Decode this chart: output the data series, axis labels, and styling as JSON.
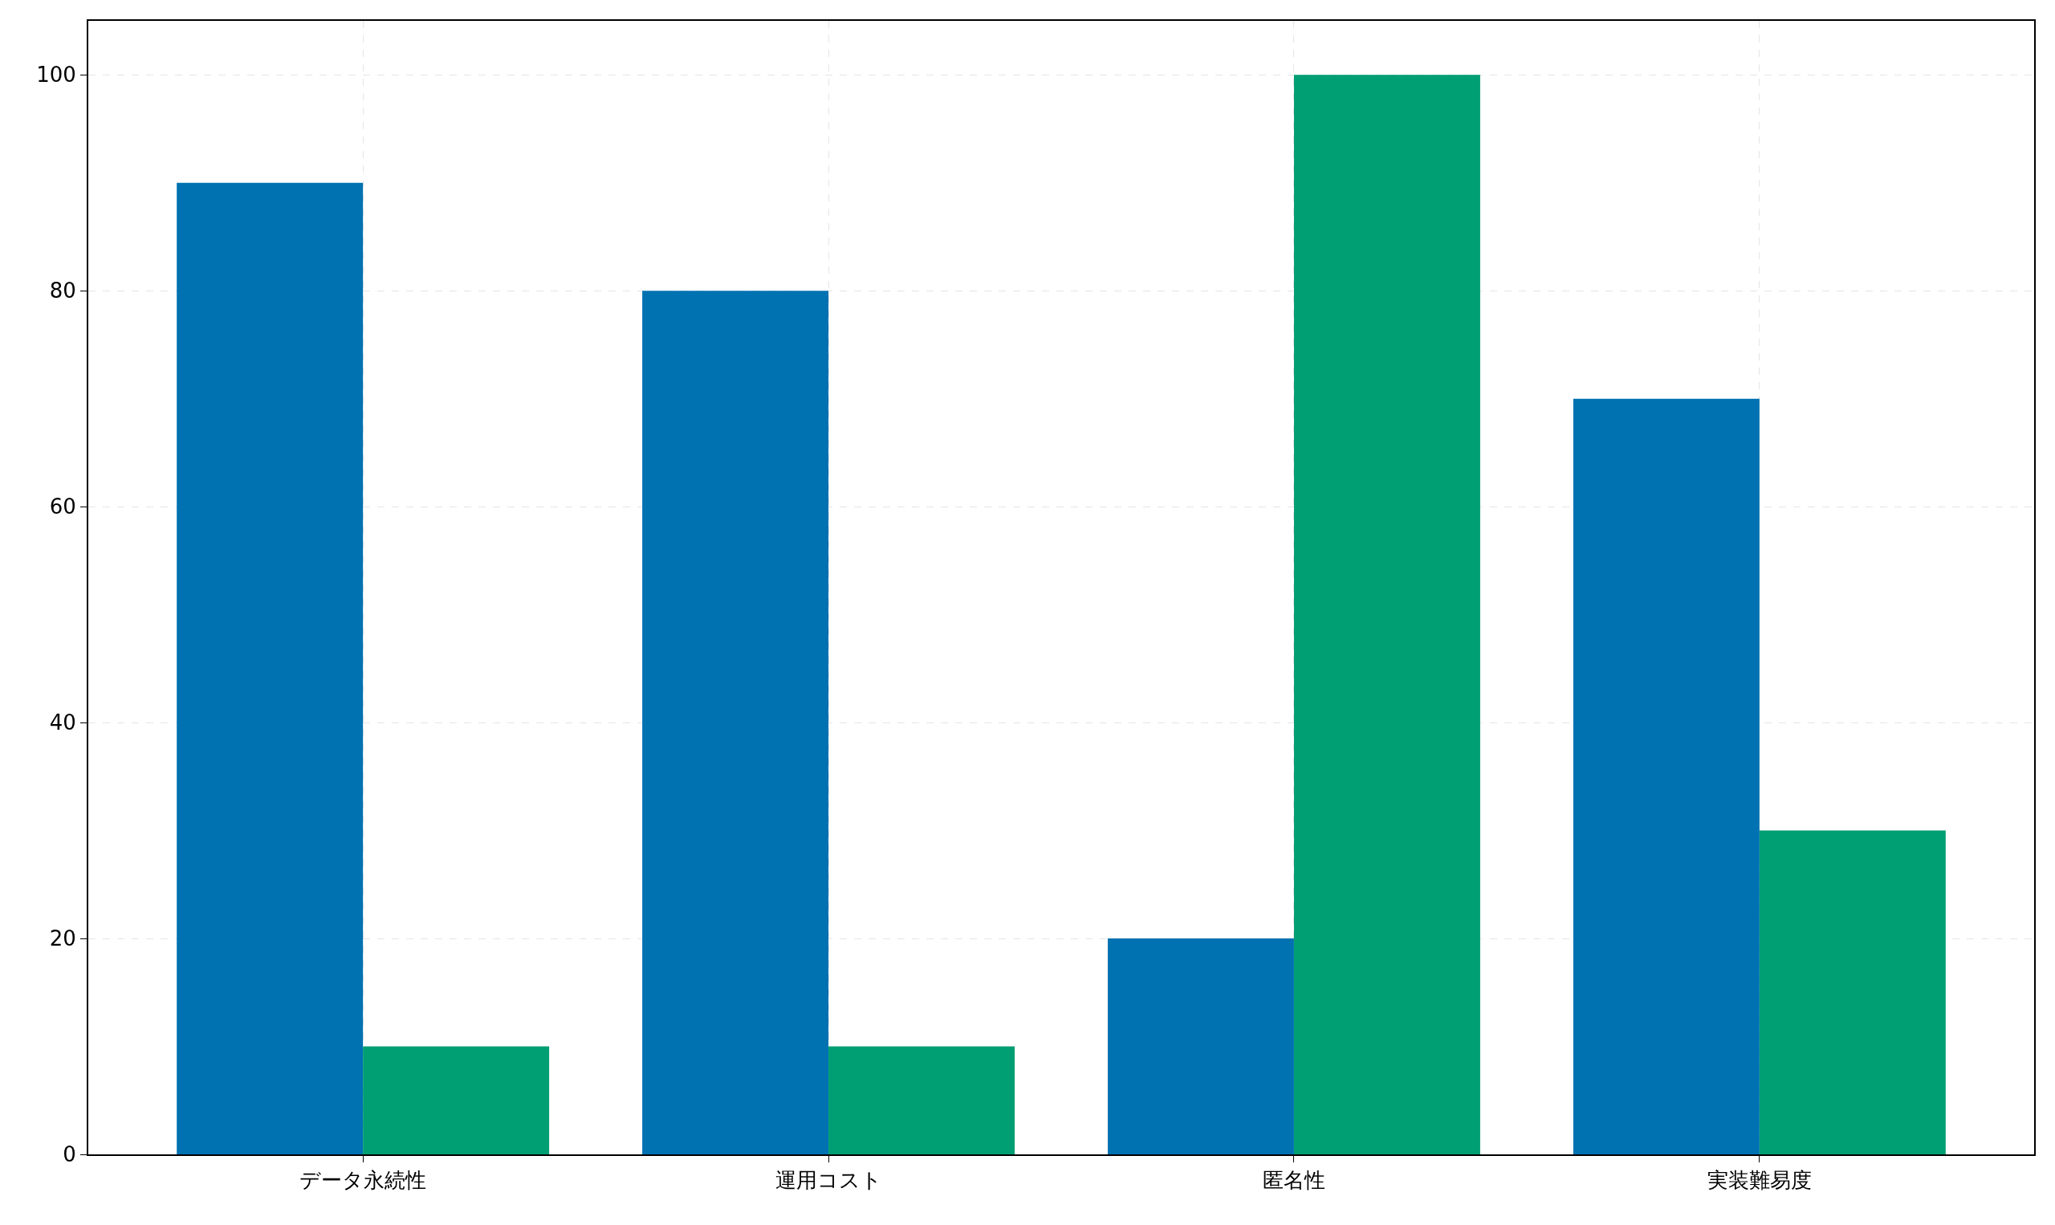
{
  "chart_data": {
    "type": "bar",
    "categories": [
      "データ永続性",
      "運用コスト",
      "匿名性",
      "実装難易度"
    ],
    "series": [
      {
        "color": "#0072b2",
        "values": [
          90,
          80,
          20,
          70
        ]
      },
      {
        "color": "#009e73",
        "values": [
          10,
          10,
          100,
          30
        ]
      }
    ],
    "ylim": [
      0,
      105
    ],
    "yticks": [
      0,
      20,
      40,
      60,
      80,
      100
    ],
    "grid": true
  }
}
